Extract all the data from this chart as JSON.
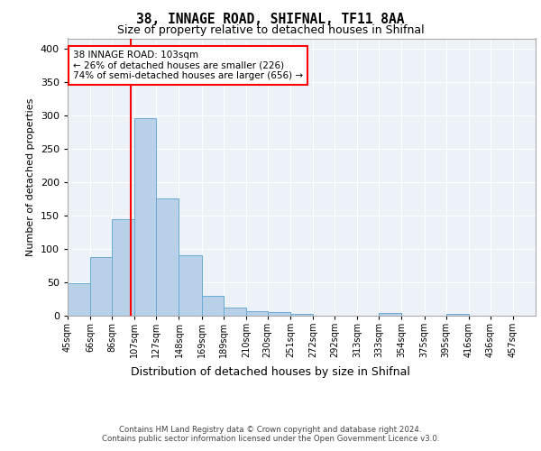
{
  "title1": "38, INNAGE ROAD, SHIFNAL, TF11 8AA",
  "title2": "Size of property relative to detached houses in Shifnal",
  "xlabel": "Distribution of detached houses by size in Shifnal",
  "ylabel": "Number of detached properties",
  "bin_labels": [
    "45sqm",
    "66sqm",
    "86sqm",
    "107sqm",
    "127sqm",
    "148sqm",
    "169sqm",
    "189sqm",
    "210sqm",
    "230sqm",
    "251sqm",
    "272sqm",
    "292sqm",
    "313sqm",
    "333sqm",
    "354sqm",
    "375sqm",
    "395sqm",
    "416sqm",
    "436sqm",
    "457sqm"
  ],
  "bin_edges": [
    45,
    66,
    86,
    107,
    127,
    148,
    169,
    189,
    210,
    230,
    251,
    272,
    292,
    313,
    333,
    354,
    375,
    395,
    416,
    436,
    457,
    478
  ],
  "bar_heights": [
    48,
    88,
    145,
    295,
    175,
    91,
    30,
    12,
    7,
    5,
    3,
    0,
    0,
    0,
    4,
    0,
    0,
    3,
    0,
    0,
    0
  ],
  "bar_color": "#b8d0e8",
  "bar_edge_color": "#6aaad4",
  "property_line_x": 103,
  "annotation_line1": "38 INNAGE ROAD: 103sqm",
  "annotation_line2": "← 26% of detached houses are smaller (226)",
  "annotation_line3": "74% of semi-detached houses are larger (656) →",
  "annotation_box_color": "white",
  "annotation_box_edge_color": "red",
  "vline_color": "red",
  "ylim": [
    0,
    415
  ],
  "yticks": [
    0,
    50,
    100,
    150,
    200,
    250,
    300,
    350,
    400
  ],
  "background_color": "#edf2f9",
  "grid_color": "white",
  "footer1": "Contains HM Land Registry data © Crown copyright and database right 2024.",
  "footer2": "Contains public sector information licensed under the Open Government Licence v3.0."
}
